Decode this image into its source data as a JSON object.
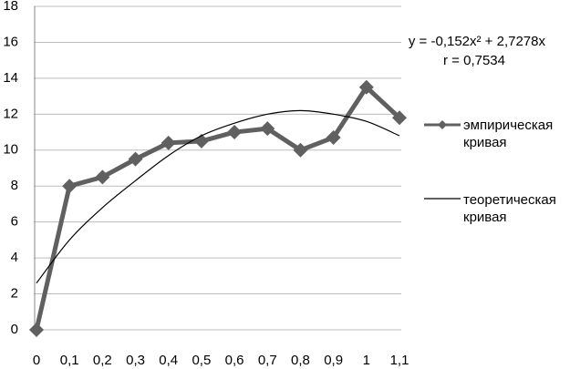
{
  "chart_data": {
    "type": "line",
    "categories": [
      "0",
      "0,1",
      "0,2",
      "0,3",
      "0,4",
      "0,5",
      "0,6",
      "0,7",
      "0,8",
      "0,9",
      "1",
      "1,1"
    ],
    "series": [
      {
        "name": "эмпирическая кривая",
        "color": "#606060",
        "marker": "diamond",
        "values": [
          0,
          8,
          8.5,
          9.5,
          10.4,
          10.5,
          11,
          11.2,
          10,
          10.7,
          13.5,
          11.8
        ]
      },
      {
        "name": "теоретическая кривая",
        "color": "#000000",
        "smooth": true,
        "values": [
          2.6,
          5.0,
          6.8,
          8.3,
          9.7,
          10.8,
          11.5,
          12.0,
          12.2,
          12.0,
          11.6,
          10.8
        ]
      }
    ],
    "ylim": [
      0,
      18
    ],
    "yticks": [
      0,
      2,
      4,
      6,
      8,
      10,
      12,
      14,
      16,
      18
    ],
    "grid": true,
    "annotations": [
      "y = -0,152x² + 2,7278x",
      "r = 0,7534"
    ],
    "legend": "right"
  }
}
